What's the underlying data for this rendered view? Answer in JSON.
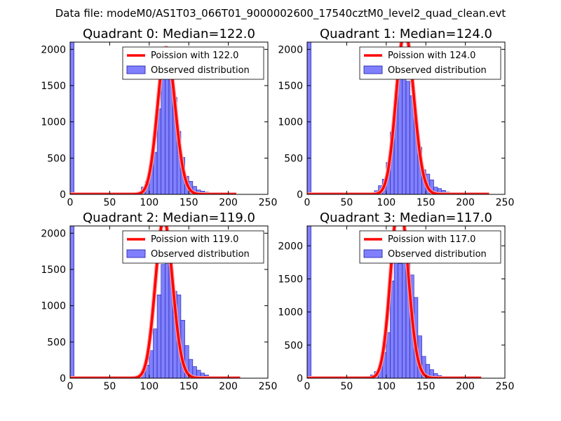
{
  "figure_title": "Data file: modeM0/AS1T03_066T01_9000002600_17540cztM0_level2_quad_clean.evt",
  "colors": {
    "hist_fill": "#8080ff",
    "hist_edge": "#1a1aa6",
    "poisson_line": "#ff0000",
    "poisson_line_fade": "#ff9d9d"
  },
  "chart_data": [
    {
      "type": "bar",
      "title": "Quadrant 0: Median=122.0",
      "xlim": [
        0,
        250
      ],
      "ylim": [
        0,
        2100
      ],
      "xticks": [
        0,
        50,
        100,
        150,
        200,
        250
      ],
      "yticks": [
        0,
        500,
        1000,
        1500,
        2000
      ],
      "bin_width": 5,
      "hist_bins": [
        0,
        65,
        70,
        75,
        80,
        85,
        90,
        95,
        100,
        105,
        110,
        115,
        120,
        125,
        130,
        135,
        140,
        145,
        150,
        155,
        160,
        165,
        170,
        175,
        180,
        185,
        190,
        195
      ],
      "hist_values": [
        2100,
        5,
        20,
        10,
        15,
        30,
        100,
        180,
        380,
        580,
        1180,
        1640,
        2020,
        1600,
        1340,
        870,
        510,
        250,
        180,
        110,
        60,
        45,
        30,
        20,
        12,
        8,
        5,
        3
      ],
      "poisson_mean": 122.0,
      "poisson_xmax": 210,
      "legend": [
        "Poission with 122.0",
        "Observed distribution"
      ]
    },
    {
      "type": "bar",
      "title": "Quadrant 1: Median=124.0",
      "xlim": [
        0,
        250
      ],
      "ylim": [
        0,
        2100
      ],
      "xticks": [
        0,
        50,
        100,
        150,
        200,
        250
      ],
      "yticks": [
        0,
        500,
        1000,
        1500,
        2000
      ],
      "bin_width": 5,
      "hist_bins": [
        0,
        70,
        75,
        80,
        85,
        90,
        95,
        100,
        105,
        110,
        115,
        120,
        125,
        130,
        135,
        140,
        145,
        150,
        155,
        160,
        165,
        170,
        175,
        180,
        185,
        190
      ],
      "hist_values": [
        2100,
        20,
        10,
        15,
        50,
        120,
        210,
        440,
        860,
        1290,
        1840,
        2010,
        1560,
        1360,
        1020,
        650,
        340,
        280,
        200,
        100,
        80,
        55,
        30,
        20,
        10,
        5
      ],
      "poisson_mean": 124.0,
      "poisson_xmax": 230,
      "legend": [
        "Poission with 124.0",
        "Observed distribution"
      ]
    },
    {
      "type": "bar",
      "title": "Quadrant 2: Median=119.0",
      "xlim": [
        0,
        250
      ],
      "ylim": [
        0,
        2100
      ],
      "xticks": [
        0,
        50,
        100,
        150,
        200,
        250
      ],
      "yticks": [
        0,
        500,
        1000,
        1500,
        2000
      ],
      "bin_width": 5,
      "hist_bins": [
        0,
        70,
        75,
        80,
        85,
        90,
        95,
        100,
        105,
        110,
        115,
        120,
        125,
        130,
        135,
        140,
        145,
        150,
        155,
        160,
        165,
        170,
        175,
        180,
        185
      ],
      "hist_values": [
        2100,
        10,
        15,
        20,
        40,
        90,
        180,
        380,
        680,
        1150,
        1570,
        2010,
        1540,
        1200,
        1150,
        800,
        450,
        260,
        160,
        110,
        70,
        45,
        20,
        10,
        5
      ],
      "poisson_mean": 119.0,
      "poisson_xmax": 215,
      "legend": [
        "Poission with 119.0",
        "Observed distribution"
      ]
    },
    {
      "type": "bar",
      "title": "Quadrant 3: Median=117.0",
      "xlim": [
        0,
        250
      ],
      "ylim": [
        0,
        2300
      ],
      "xticks": [
        0,
        50,
        100,
        150,
        200,
        250
      ],
      "yticks": [
        0,
        500,
        1000,
        1500,
        2000
      ],
      "bin_width": 5,
      "hist_bins": [
        0,
        65,
        70,
        75,
        80,
        85,
        90,
        95,
        100,
        105,
        110,
        115,
        120,
        125,
        130,
        135,
        140,
        145,
        150,
        155,
        160,
        165
      ],
      "hist_values": [
        2300,
        10,
        15,
        25,
        50,
        100,
        180,
        390,
        690,
        1470,
        1990,
        1730,
        2010,
        1790,
        1560,
        1220,
        640,
        330,
        210,
        130,
        70,
        40
      ],
      "poisson_mean": 117.0,
      "poisson_xmax": 220,
      "legend": [
        "Poission with 117.0",
        "Observed distribution"
      ]
    }
  ]
}
